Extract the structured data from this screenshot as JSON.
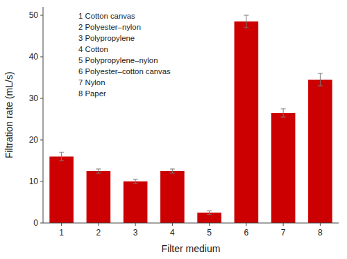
{
  "chart_data": {
    "type": "bar",
    "categories": [
      1,
      2,
      3,
      4,
      5,
      6,
      7,
      8
    ],
    "values": [
      16.0,
      12.5,
      10.0,
      12.5,
      2.5,
      48.5,
      26.5,
      34.5
    ],
    "errors": [
      1.0,
      0.5,
      0.5,
      0.5,
      0.4,
      1.5,
      1.0,
      1.5
    ],
    "color": "#CC0000",
    "x_label": "Filter medium",
    "y_label": "Filtration rate (mL/s)",
    "ylim": [
      0,
      52
    ],
    "yticks": [
      0,
      10,
      20,
      30,
      40,
      50
    ],
    "grid": false,
    "annotations": [
      "1 Cotton canvas",
      "2 Polyester–nylon",
      "3 Polypropylene",
      "4 Cotton",
      "5 Polypropylene–nylon",
      "6 Polyester–cotton canvas",
      "7 Nylon",
      "8 Paper"
    ]
  }
}
